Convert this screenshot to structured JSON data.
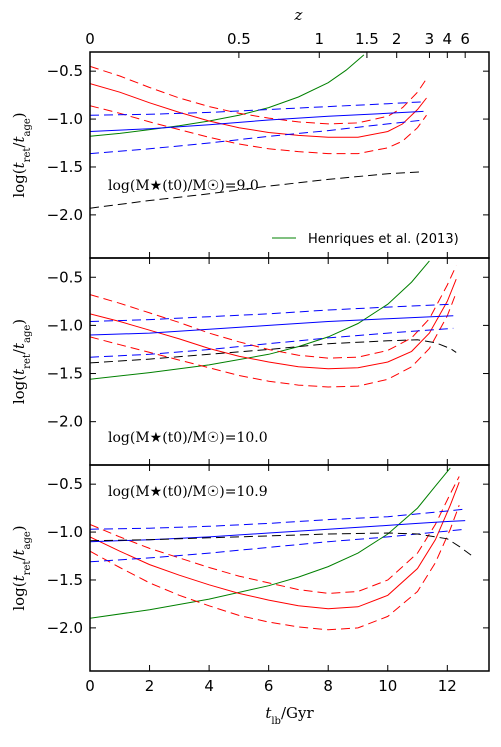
{
  "chart_data": {
    "type": "line",
    "xlabel": "t_lb/Gyr",
    "ylabel": "log(t_ret/t_age)",
    "top_axis_label": "z",
    "xlim": [
      0,
      13.4
    ],
    "ylim": [
      -2.45,
      -0.3
    ],
    "xticks": [
      0,
      2,
      4,
      6,
      8,
      10,
      12
    ],
    "yticks": [
      -0.5,
      -1.0,
      -1.5,
      -2.0
    ],
    "ytick_labels": [
      "−0.5",
      "−1.0",
      "−1.5",
      "−2.0"
    ],
    "top_ticks": [
      {
        "label": "0",
        "t": 0.0
      },
      {
        "label": "0.5",
        "t": 5.0
      },
      {
        "label": "1",
        "t": 7.7
      },
      {
        "label": "1.5",
        "t": 9.3
      },
      {
        "label": "2",
        "t": 10.3
      },
      {
        "label": "3",
        "t": 11.4
      },
      {
        "label": "4",
        "t": 12.0
      },
      {
        "label": "6",
        "t": 12.6
      }
    ],
    "legend": {
      "label": "Henriques et al. (2013)",
      "color": "#008000",
      "placement": "lower-right",
      "panel": 0
    },
    "colors": {
      "green": "#008000",
      "red": "#ff0000",
      "blue": "#0000ff",
      "black": "#000000"
    },
    "panels": [
      {
        "annotation": "log(M★(t0)/M☉)=9.0",
        "annotation_placement": "lower-left",
        "series": [
          {
            "color": "green",
            "style": "solid",
            "x": [
              0,
              1,
              2,
              3,
              4,
              5,
              6,
              7,
              8,
              8.6,
              9.2
            ],
            "y": [
              -1.18,
              -1.15,
              -1.11,
              -1.07,
              -1.02,
              -0.96,
              -0.88,
              -0.77,
              -0.62,
              -0.49,
              -0.33
            ]
          },
          {
            "color": "red",
            "style": "solid",
            "x": [
              0,
              1,
              2,
              3,
              4,
              5,
              6,
              7,
              8,
              9,
              10,
              10.5,
              11,
              11.3
            ],
            "y": [
              -0.63,
              -0.72,
              -0.83,
              -0.93,
              -1.02,
              -1.09,
              -1.14,
              -1.17,
              -1.19,
              -1.19,
              -1.13,
              -1.05,
              -0.9,
              -0.78
            ]
          },
          {
            "color": "red",
            "style": "dashed",
            "x": [
              0,
              1,
              2,
              3,
              4,
              5,
              6,
              7,
              8,
              9,
              10,
              10.5,
              11,
              11.3
            ],
            "y": [
              -0.45,
              -0.55,
              -0.67,
              -0.78,
              -0.87,
              -0.94,
              -0.99,
              -1.03,
              -1.05,
              -1.04,
              -0.97,
              -0.88,
              -0.72,
              -0.58
            ]
          },
          {
            "color": "red",
            "style": "dashed",
            "x": [
              0,
              1,
              2,
              3,
              4,
              5,
              6,
              7,
              8,
              9,
              10,
              10.5,
              11,
              11.3
            ],
            "y": [
              -0.86,
              -0.94,
              -1.03,
              -1.11,
              -1.19,
              -1.26,
              -1.31,
              -1.34,
              -1.36,
              -1.36,
              -1.3,
              -1.23,
              -1.09,
              -0.96
            ]
          },
          {
            "color": "blue",
            "style": "solid",
            "x": [
              0,
              2,
              4,
              6,
              8,
              10,
              11.2
            ],
            "y": [
              -1.13,
              -1.1,
              -1.06,
              -1.01,
              -0.97,
              -0.94,
              -0.92
            ]
          },
          {
            "color": "blue",
            "style": "dashed",
            "x": [
              0,
              2,
              4,
              6,
              8,
              10,
              11.2
            ],
            "y": [
              -0.96,
              -0.95,
              -0.93,
              -0.9,
              -0.87,
              -0.84,
              -0.82
            ]
          },
          {
            "color": "blue",
            "style": "dashed",
            "x": [
              0,
              2,
              4,
              6,
              8,
              10,
              11.2
            ],
            "y": [
              -1.36,
              -1.31,
              -1.25,
              -1.18,
              -1.12,
              -1.05,
              -1.01
            ]
          },
          {
            "color": "black",
            "style": "dashed",
            "x": [
              0,
              2,
              4,
              6,
              8,
              10,
              11.2
            ],
            "y": [
              -1.93,
              -1.85,
              -1.78,
              -1.7,
              -1.63,
              -1.57,
              -1.55
            ]
          }
        ]
      },
      {
        "annotation": "log(M★(t0)/M☉)=10.0",
        "annotation_placement": "lower-left",
        "series": [
          {
            "color": "green",
            "style": "solid",
            "x": [
              0,
              2,
              4,
              6,
              7,
              8,
              9,
              10,
              10.8,
              11.4
            ],
            "y": [
              -1.56,
              -1.49,
              -1.41,
              -1.3,
              -1.22,
              -1.12,
              -0.98,
              -0.78,
              -0.55,
              -0.33
            ]
          },
          {
            "color": "red",
            "style": "solid",
            "x": [
              0,
              1,
              2,
              3,
              4,
              5,
              6,
              7,
              8,
              9,
              10,
              10.8,
              11.4,
              12,
              12.3
            ],
            "y": [
              -0.88,
              -0.96,
              -1.05,
              -1.14,
              -1.24,
              -1.32,
              -1.38,
              -1.43,
              -1.45,
              -1.44,
              -1.38,
              -1.27,
              -1.08,
              -0.75,
              -0.52
            ]
          },
          {
            "color": "red",
            "style": "dashed",
            "x": [
              0,
              1,
              2,
              3,
              4,
              5,
              6,
              7,
              8,
              9,
              10,
              10.8,
              11.4,
              12,
              12.3
            ],
            "y": [
              -0.68,
              -0.77,
              -0.87,
              -0.97,
              -1.08,
              -1.17,
              -1.25,
              -1.31,
              -1.34,
              -1.33,
              -1.26,
              -1.13,
              -0.93,
              -0.58,
              -0.38
            ]
          },
          {
            "color": "red",
            "style": "dashed",
            "x": [
              0,
              1,
              2,
              3,
              4,
              5,
              6,
              7,
              8,
              9,
              10,
              10.8,
              11.4,
              12,
              12.3
            ],
            "y": [
              -1.12,
              -1.2,
              -1.28,
              -1.36,
              -1.44,
              -1.52,
              -1.58,
              -1.62,
              -1.64,
              -1.63,
              -1.56,
              -1.43,
              -1.24,
              -0.9,
              -0.66
            ]
          },
          {
            "color": "blue",
            "style": "solid",
            "x": [
              0,
              2,
              4,
              6,
              8,
              10,
              12.2
            ],
            "y": [
              -1.1,
              -1.08,
              -1.04,
              -1.0,
              -0.96,
              -0.93,
              -0.9
            ]
          },
          {
            "color": "blue",
            "style": "dashed",
            "x": [
              0,
              2,
              4,
              6,
              8,
              10,
              12.2
            ],
            "y": [
              -0.96,
              -0.94,
              -0.91,
              -0.88,
              -0.84,
              -0.81,
              -0.78
            ]
          },
          {
            "color": "blue",
            "style": "dashed",
            "x": [
              0,
              2,
              4,
              6,
              8,
              10,
              12.2
            ],
            "y": [
              -1.33,
              -1.3,
              -1.25,
              -1.19,
              -1.13,
              -1.08,
              -1.03
            ]
          },
          {
            "color": "black",
            "style": "dashed",
            "x": [
              0,
              2,
              4,
              6,
              8,
              10,
              11,
              11.6,
              12.1,
              12.3
            ],
            "y": [
              -1.39,
              -1.35,
              -1.3,
              -1.25,
              -1.19,
              -1.16,
              -1.15,
              -1.18,
              -1.24,
              -1.28
            ]
          }
        ]
      },
      {
        "annotation": "log(M★(t0)/M☉)=10.9",
        "annotation_placement": "upper-left",
        "series": [
          {
            "color": "green",
            "style": "solid",
            "x": [
              0,
              2,
              4,
              6,
              7,
              8,
              9,
              10,
              11,
              11.6,
              12.1
            ],
            "y": [
              -1.9,
              -1.81,
              -1.7,
              -1.56,
              -1.47,
              -1.36,
              -1.22,
              -1.02,
              -0.75,
              -0.52,
              -0.33
            ]
          },
          {
            "color": "red",
            "style": "solid",
            "x": [
              0,
              1,
              2,
              3,
              4,
              5,
              6,
              7,
              8,
              9,
              10,
              11,
              11.6,
              12.1,
              12.4
            ],
            "y": [
              -1.05,
              -1.2,
              -1.34,
              -1.45,
              -1.55,
              -1.64,
              -1.71,
              -1.77,
              -1.8,
              -1.78,
              -1.66,
              -1.38,
              -1.08,
              -0.72,
              -0.48
            ]
          },
          {
            "color": "red",
            "style": "dashed",
            "x": [
              0,
              1,
              2,
              3,
              4,
              5,
              6,
              7,
              8,
              9,
              10,
              11,
              11.6,
              12.1,
              12.4
            ],
            "y": [
              -0.92,
              -1.05,
              -1.17,
              -1.27,
              -1.37,
              -1.46,
              -1.53,
              -1.6,
              -1.64,
              -1.62,
              -1.5,
              -1.22,
              -0.92,
              -0.6,
              -0.42
            ]
          },
          {
            "color": "red",
            "style": "dashed",
            "x": [
              0,
              1,
              2,
              3,
              4,
              5,
              6,
              7,
              8,
              9,
              10,
              11,
              11.6,
              12.1,
              12.4
            ],
            "y": [
              -1.2,
              -1.37,
              -1.53,
              -1.66,
              -1.77,
              -1.87,
              -1.94,
              -1.99,
              -2.02,
              -2.0,
              -1.88,
              -1.62,
              -1.32,
              -0.97,
              -0.72
            ]
          },
          {
            "color": "blue",
            "style": "solid",
            "x": [
              0,
              2,
              4,
              6,
              8,
              10,
              11,
              12,
              12.6
            ],
            "y": [
              -1.1,
              -1.08,
              -1.05,
              -1.01,
              -0.97,
              -0.93,
              -0.91,
              -0.89,
              -0.88
            ]
          },
          {
            "color": "blue",
            "style": "dashed",
            "x": [
              0,
              2,
              4,
              6,
              8,
              10,
              11,
              12,
              12.6
            ],
            "y": [
              -0.97,
              -0.96,
              -0.94,
              -0.91,
              -0.87,
              -0.84,
              -0.81,
              -0.78,
              -0.76
            ]
          },
          {
            "color": "blue",
            "style": "dashed",
            "x": [
              0,
              2,
              4,
              6,
              8,
              10,
              11,
              12,
              12.6
            ],
            "y": [
              -1.31,
              -1.27,
              -1.22,
              -1.16,
              -1.1,
              -1.05,
              -1.02,
              -0.99,
              -0.97
            ]
          },
          {
            "color": "black",
            "style": "dashed",
            "x": [
              0,
              2,
              4,
              6,
              8,
              10,
              11,
              12,
              12.4,
              12.8
            ],
            "y": [
              -1.09,
              -1.08,
              -1.06,
              -1.04,
              -1.02,
              -1.01,
              -1.02,
              -1.07,
              -1.15,
              -1.24
            ]
          }
        ]
      }
    ]
  }
}
